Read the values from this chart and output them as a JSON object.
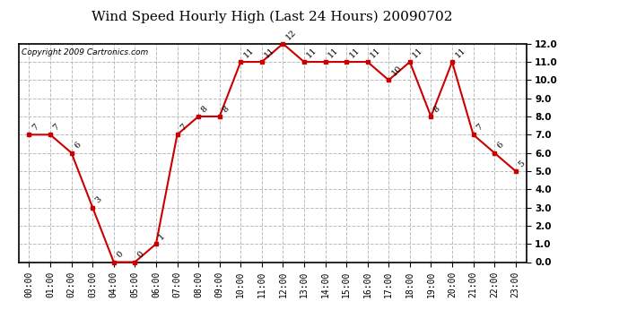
{
  "title": "Wind Speed Hourly High (Last 24 Hours) 20090702",
  "copyright": "Copyright 2009 Cartronics.com",
  "hours": [
    "00:00",
    "01:00",
    "02:00",
    "03:00",
    "04:00",
    "05:00",
    "06:00",
    "07:00",
    "08:00",
    "09:00",
    "10:00",
    "11:00",
    "12:00",
    "13:00",
    "14:00",
    "15:00",
    "16:00",
    "17:00",
    "18:00",
    "19:00",
    "20:00",
    "21:00",
    "22:00",
    "23:00"
  ],
  "values": [
    7,
    7,
    6,
    3,
    0,
    0,
    1,
    7,
    8,
    8,
    11,
    11,
    12,
    11,
    11,
    11,
    11,
    10,
    11,
    8,
    11,
    7,
    6,
    5
  ],
  "line_color": "#cc0000",
  "marker_color": "#cc0000",
  "bg_color": "#ffffff",
  "plot_bg_color": "#ffffff",
  "grid_color": "#bbbbbb",
  "title_fontsize": 11,
  "label_fontsize": 7,
  "tick_fontsize": 7,
  "copyright_fontsize": 6.5,
  "ylim": [
    0.0,
    12.0
  ],
  "yticks": [
    0.0,
    1.0,
    2.0,
    3.0,
    4.0,
    5.0,
    6.0,
    7.0,
    8.0,
    9.0,
    10.0,
    11.0,
    12.0
  ]
}
